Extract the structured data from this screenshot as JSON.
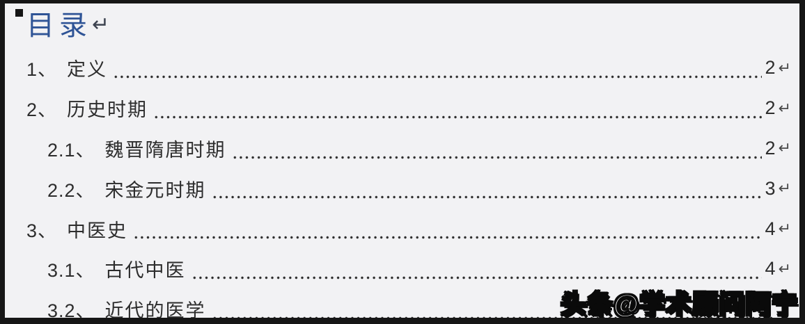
{
  "page": {
    "title": {
      "text": "目录",
      "paragraph_mark": "↵"
    },
    "outline_marker_icon": "black-square",
    "toc_entries": [
      {
        "num": "1、",
        "label": "定义",
        "page": "2",
        "mark": "↵",
        "level": 1
      },
      {
        "num": "2、",
        "label": "历史时期",
        "page": "2",
        "mark": "↵",
        "level": 1
      },
      {
        "num": "2.1、",
        "label": "魏晋隋唐时期",
        "page": "2",
        "mark": "↵",
        "level": 2
      },
      {
        "num": "2.2、",
        "label": "宋金元时期",
        "page": "3",
        "mark": "↵",
        "level": 2
      },
      {
        "num": "3、",
        "label": "中医史",
        "page": "4",
        "mark": "↵",
        "level": 1
      },
      {
        "num": "3.1、",
        "label": "古代中医",
        "page": "4",
        "mark": "↵",
        "level": 2
      },
      {
        "num": "3.2、",
        "label": "近代的医学",
        "page": "",
        "mark": "",
        "level": 2
      }
    ],
    "watermark": "头条@学术顾问阿宁",
    "colors": {
      "title_blue": "#2F5496",
      "body_text": "#2d2d2d",
      "background": "#f2f2f4",
      "border": "#161616",
      "watermark_fill": "#f5f5f5",
      "watermark_outline": "#0a0a0a"
    }
  }
}
